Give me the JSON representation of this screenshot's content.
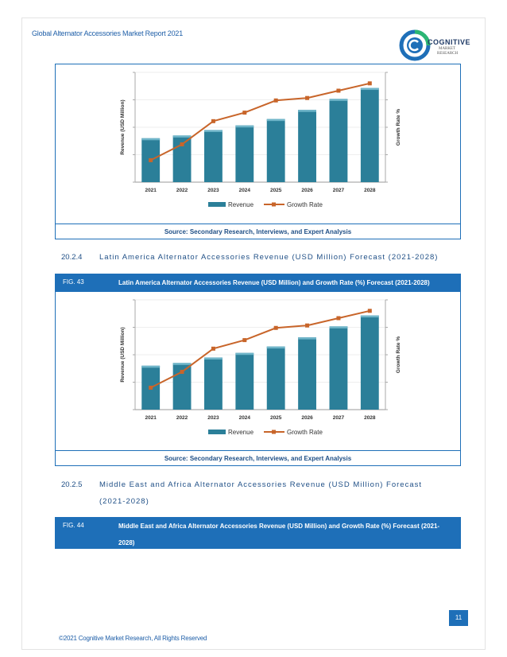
{
  "header": {
    "title": "Global Alternator Accessories Market Report 2021"
  },
  "logo": {
    "name": "COGNITIVE",
    "sub1": "MARKET",
    "sub2": "RESEARCH",
    "icon": "cognitive-logo-icon"
  },
  "colors": {
    "accent": "#1e6fb8",
    "bar": "#2b7f99",
    "line": "#c8652a"
  },
  "charts": [
    {
      "source": "Source: Secondary Research, Interviews, and Expert Analysis",
      "chart_data": {
        "type": "bar",
        "categories": [
          "2021",
          "2022",
          "2023",
          "2024",
          "2025",
          "2026",
          "2027",
          "2028"
        ],
        "series": [
          {
            "name": "Revenue",
            "type": "bar",
            "values": [
              48,
              51,
              57,
              62,
              69,
              79,
              91,
              103
            ]
          },
          {
            "name": "Growth Rate",
            "type": "line",
            "values": [
              1.8,
              3.1,
              5.0,
              5.7,
              6.7,
              6.9,
              7.5,
              8.1
            ]
          }
        ],
        "ylabel": "Revenue (USD Million)",
        "y2label": "Growth Rate %",
        "legend": "bottom"
      }
    },
    {
      "figure_number": "FIG. 43",
      "figure_title": "Latin America Alternator Accessories Revenue (USD Million) and Growth Rate (%) Forecast (2021-2028)",
      "source": "Source: Secondary Research, Interviews, and Expert Analysis",
      "chart_data": {
        "type": "bar",
        "categories": [
          "2021",
          "2022",
          "2023",
          "2024",
          "2025",
          "2026",
          "2027",
          "2028"
        ],
        "series": [
          {
            "name": "Revenue",
            "type": "bar",
            "values": [
              48,
              51,
              57,
              62,
              69,
              79,
              91,
              103
            ]
          },
          {
            "name": "Growth Rate",
            "type": "line",
            "values": [
              1.8,
              3.1,
              5.0,
              5.7,
              6.7,
              6.9,
              7.5,
              8.1
            ]
          }
        ],
        "ylabel": "Revenue (USD Million)",
        "y2label": "Growth Rate %",
        "legend": "bottom"
      }
    }
  ],
  "sections": [
    {
      "number": "20.2.4",
      "title": "Latin America Alternator Accessories Revenue (USD Million) Forecast (2021-2028)"
    },
    {
      "number": "20.2.5",
      "title": "Middle East and Africa Alternator Accessories Revenue (USD Million) Forecast",
      "title_cont": "(2021-2028)"
    }
  ],
  "fig44": {
    "figure_number": "FIG. 44",
    "figure_title": "Middle East and Africa Alternator Accessories Revenue (USD Million) and Growth Rate (%) Forecast (2021-2028)"
  },
  "footer": {
    "page_number": "11",
    "copyright": "©2021 Cognitive Market Research, All Rights Reserved"
  }
}
